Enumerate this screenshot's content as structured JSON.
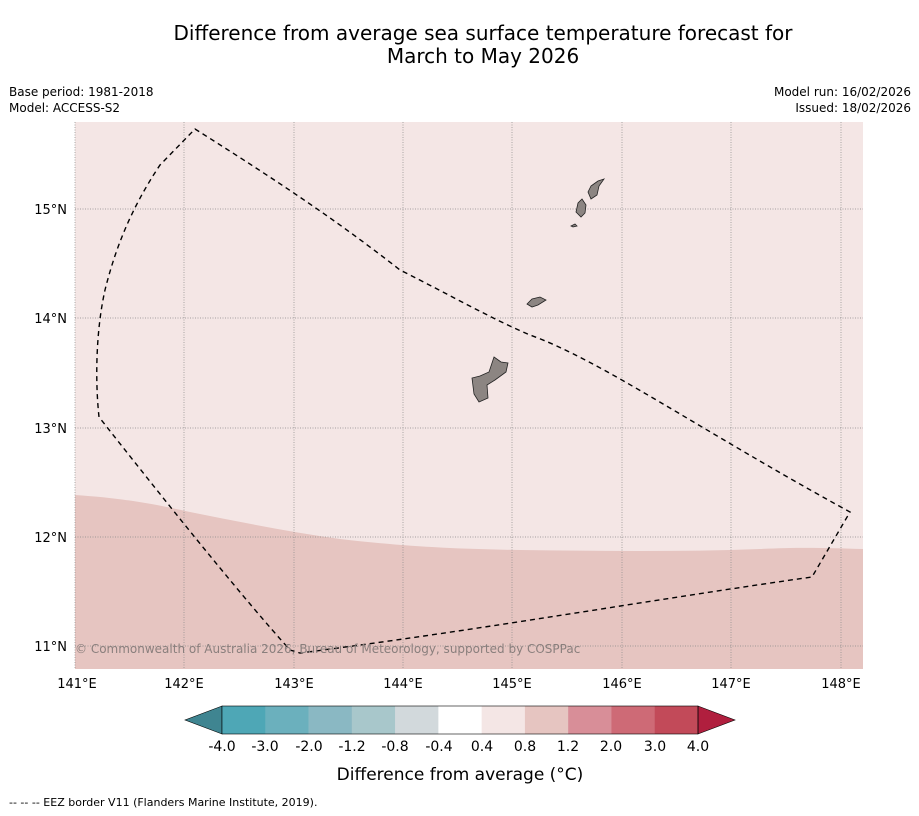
{
  "header": {
    "title_line1": "Difference from average sea surface temperature forecast for",
    "title_line2": "March to May 2026"
  },
  "meta_left": {
    "base_period": "Base period: 1981-2018",
    "model": "Model: ACCESS-S2"
  },
  "meta_right": {
    "model_run": "Model run: 16/02/2026",
    "issued": "Issued: 18/02/2026"
  },
  "map": {
    "lon_labels": [
      "141°E",
      "142°E",
      "143°E",
      "144°E",
      "145°E",
      "146°E",
      "147°E",
      "148°E"
    ],
    "lat_labels": [
      "15°N",
      "14°N",
      "13°N",
      "12°N",
      "11°N"
    ],
    "copyright": "© Commonwealth of Australia 2026, Bureau of Meteorology, supported by COSPPac",
    "region_colors": {
      "band_0_4_to_0_8": "#f4e6e5",
      "band_0_8_to_1_2": "#e6c5c1"
    },
    "island_color": "#8c8582"
  },
  "colorbar": {
    "tick_labels": [
      "-4.0",
      "-3.0",
      "-2.0",
      "-1.2",
      "-0.8",
      "-0.4",
      "0.4",
      "0.8",
      "1.2",
      "2.0",
      "3.0",
      "4.0"
    ],
    "colors": [
      "#4ea7b6",
      "#6bb0bd",
      "#8ab8c3",
      "#a8c7cb",
      "#d2d9dc",
      "#ffffff",
      "#f4e6e5",
      "#e6c5c1",
      "#d88e98",
      "#ce6a76",
      "#c24a59"
    ],
    "under_color": "#3f8591",
    "over_color": "#b01f3e",
    "label": "Difference from average (°C)"
  },
  "footer": {
    "legend_text": "-- -- -- EEZ border V11 (Flanders Marine Institute, 2019)."
  }
}
